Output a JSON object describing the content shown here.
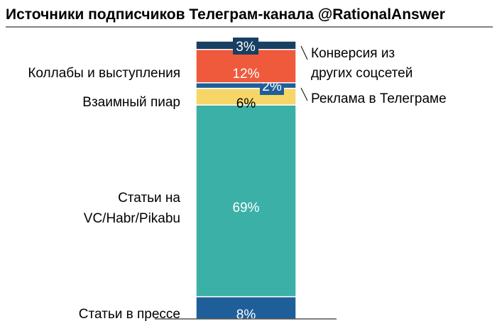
{
  "chart_data": {
    "type": "bar",
    "subtype": "stacked-100",
    "title": "Источники подписчиков Телеграм-канала @RationalAnswer",
    "ylim": [
      0,
      100
    ],
    "grid": false,
    "legend": "none",
    "segments": [
      {
        "name": "Статьи в прессе",
        "value": 8,
        "label": "8%",
        "color": "#1f5f99",
        "label_color": "#ffffff",
        "label_side": "left"
      },
      {
        "name": "Статьи на VC/Habr/Pikabu",
        "value": 69,
        "label": "69%",
        "color": "#3bb0a6",
        "label_color": "#ffffff",
        "label_side": "left"
      },
      {
        "name": "Взаимный пиар",
        "value": 6,
        "label": "6%",
        "color": "#f6d667",
        "label_color": "#000000",
        "label_side": "left"
      },
      {
        "name": "Реклама в Телеграме",
        "value": 2,
        "label": "2%",
        "color": "#1f5f99",
        "label_color": "#ffffff",
        "label_side": "right",
        "label_boxed": true
      },
      {
        "name": "Коллабы и выступления",
        "value": 12,
        "label": "12%",
        "color": "#ef5a3c",
        "label_color": "#ffffff",
        "label_side": "left"
      },
      {
        "name": "Конверсия из других соцсетей",
        "value": 3,
        "label": "3%",
        "color": "#173f63",
        "label_color": "#ffffff",
        "label_side": "right",
        "label_boxed": true
      }
    ]
  }
}
